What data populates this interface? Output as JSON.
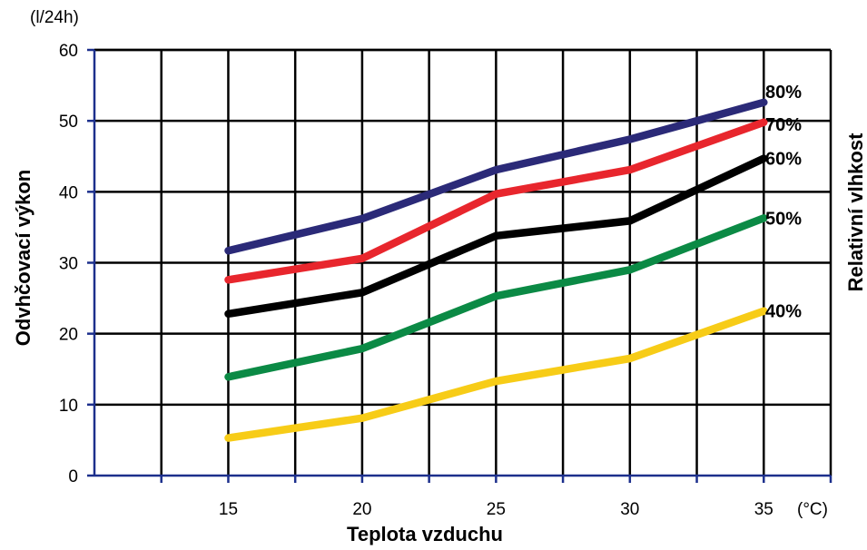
{
  "chart_data": {
    "type": "line",
    "x": [
      15,
      20,
      25,
      30,
      35
    ],
    "xlim": [
      10,
      37.5
    ],
    "ylim": [
      0,
      60
    ],
    "xticks": [
      15,
      20,
      25,
      30,
      35
    ],
    "yticks": [
      0,
      10,
      20,
      30,
      40,
      50,
      60
    ],
    "xlabel": "Teplota vzduchu",
    "ylabel": "Odvhčovací výkon",
    "x_unit": "(°C)",
    "y_unit": "(l/24h)",
    "legend_title": "Relativní vlhkost",
    "grid": true,
    "series": [
      {
        "name": "80%",
        "color": "#2b2a78",
        "values": [
          31.7,
          36.2,
          43.1,
          47.4,
          52.6
        ]
      },
      {
        "name": "70%",
        "color": "#e8262d",
        "values": [
          27.6,
          30.6,
          39.7,
          43.1,
          49.8
        ]
      },
      {
        "name": "60%",
        "color": "#000000",
        "values": [
          22.8,
          25.8,
          33.8,
          35.9,
          44.7
        ]
      },
      {
        "name": "50%",
        "color": "#0b8a45",
        "values": [
          13.9,
          17.9,
          25.3,
          29.0,
          36.3
        ]
      },
      {
        "name": "40%",
        "color": "#f7cc17",
        "values": [
          5.3,
          8.1,
          13.3,
          16.5,
          23.2
        ]
      }
    ]
  }
}
